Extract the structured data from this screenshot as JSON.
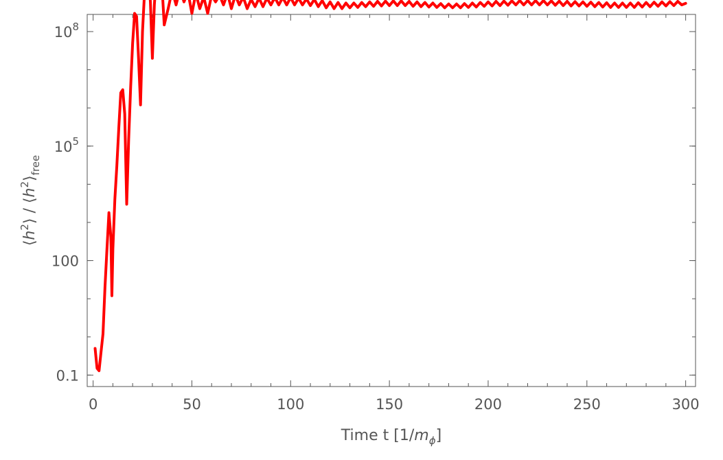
{
  "chart_data": {
    "type": "line",
    "title": "",
    "xlabel": {
      "text": "Time t [1/",
      "italic": "m",
      "sub": "ϕ",
      "close": "]"
    },
    "ylabel": {
      "part1": "⟨",
      "h": "h",
      "sup": "2",
      "part2": "⟩ / ⟨",
      "part3": "⟩",
      "sub": "free"
    },
    "xlim": [
      -3,
      305
    ],
    "ylim_log10": [
      -1.3,
      8.45
    ],
    "yscale": "log",
    "xticks": [
      {
        "value": 0,
        "label": "0"
      },
      {
        "value": 50,
        "label": "50"
      },
      {
        "value": 100,
        "label": "100"
      },
      {
        "value": 150,
        "label": "150"
      },
      {
        "value": 200,
        "label": "200"
      },
      {
        "value": 250,
        "label": "250"
      },
      {
        "value": 300,
        "label": "300"
      }
    ],
    "yticks": [
      {
        "value": 0.1,
        "label": "0.1"
      },
      {
        "value": 100,
        "label": "100"
      },
      {
        "value": 100000,
        "label_base": "10",
        "label_exp": "5"
      },
      {
        "value": 100000000,
        "label_base": "10",
        "label_exp": "8"
      }
    ],
    "grid": false,
    "color": "#ff0000",
    "series": [
      {
        "values": [
          [
            1.0,
            0.5
          ],
          [
            2.0,
            0.15
          ],
          [
            3.0,
            0.13
          ],
          [
            4.0,
            0.4
          ],
          [
            5.0,
            1.2
          ],
          [
            6.0,
            20
          ],
          [
            7.0,
            200
          ],
          [
            8.0,
            1800
          ],
          [
            9.0,
            400
          ],
          [
            9.5,
            12
          ],
          [
            10.0,
            200
          ],
          [
            11.0,
            4000
          ],
          [
            12.0,
            30000
          ],
          [
            13.0,
            300000
          ],
          [
            14.0,
            2500000
          ],
          [
            15.0,
            3000000
          ],
          [
            16.0,
            700000
          ],
          [
            17.0,
            3000
          ],
          [
            18.0,
            150000
          ],
          [
            19.0,
            3500000
          ],
          [
            20.0,
            50000000
          ],
          [
            21.0,
            300000000
          ],
          [
            22.0,
            250000000
          ],
          [
            23.0,
            20000000
          ],
          [
            24.0,
            1200000
          ],
          [
            25.0,
            100000000
          ],
          [
            26.0,
            1000000000
          ],
          [
            27.0,
            3500000000
          ],
          [
            28.0,
            3000000000
          ],
          [
            29.0,
            600000000
          ],
          [
            30.0,
            20000000
          ],
          [
            31.0,
            500000000
          ],
          [
            32.0,
            3000000000
          ],
          [
            33.0,
            5000000000
          ],
          [
            34.0,
            4000000000
          ],
          [
            35.0,
            1200000000
          ],
          [
            36.0,
            150000000
          ],
          [
            38.0,
            400000000
          ],
          [
            40.0,
            1200000000
          ],
          [
            42.0,
            500000000
          ],
          [
            44.0,
            1300000000
          ],
          [
            46.0,
            600000000
          ],
          [
            48.0,
            1100000000
          ],
          [
            50.0,
            300000000
          ],
          [
            52.0,
            1000000000
          ],
          [
            54.0,
            400000000
          ],
          [
            56.0,
            800000000
          ],
          [
            58.0,
            300000000
          ],
          [
            60.0,
            900000000
          ],
          [
            62.0,
            600000000
          ],
          [
            64.0,
            900000000
          ],
          [
            66.0,
            500000000
          ],
          [
            68.0,
            1000000000
          ],
          [
            70.0,
            400000000
          ],
          [
            72.0,
            900000000
          ],
          [
            74.0,
            500000000
          ],
          [
            76.0,
            800000000
          ],
          [
            78.0,
            400000000
          ],
          [
            80.0,
            700000000
          ],
          [
            82.0,
            450000000
          ],
          [
            84.0,
            750000000
          ],
          [
            86.0,
            450000000
          ],
          [
            88.0,
            750000000
          ],
          [
            90.0,
            500000000
          ],
          [
            92.0,
            780000000
          ],
          [
            94.0,
            500000000
          ],
          [
            96.0,
            780000000
          ],
          [
            98.0,
            500000000
          ],
          [
            100.0,
            780000000
          ],
          [
            102.0,
            500000000
          ],
          [
            104.0,
            750000000
          ],
          [
            106.0,
            500000000
          ],
          [
            108.0,
            720000000
          ],
          [
            110.0,
            480000000
          ],
          [
            112.0,
            700000000
          ],
          [
            114.0,
            450000000
          ],
          [
            116.0,
            650000000
          ],
          [
            118.0,
            420000000
          ],
          [
            120.0,
            600000000
          ],
          [
            122.0,
            400000000
          ],
          [
            124.0,
            580000000
          ],
          [
            126.0,
            400000000
          ],
          [
            128.0,
            560000000
          ],
          [
            130.0,
            420000000
          ],
          [
            132.0,
            560000000
          ],
          [
            134.0,
            430000000
          ],
          [
            136.0,
            580000000
          ],
          [
            138.0,
            450000000
          ],
          [
            140.0,
            600000000
          ],
          [
            142.0,
            460000000
          ],
          [
            144.0,
            620000000
          ],
          [
            146.0,
            470000000
          ],
          [
            148.0,
            630000000
          ],
          [
            150.0,
            480000000
          ],
          [
            152.0,
            640000000
          ],
          [
            154.0,
            480000000
          ],
          [
            156.0,
            640000000
          ],
          [
            158.0,
            480000000
          ],
          [
            160.0,
            620000000
          ],
          [
            162.0,
            460000000
          ],
          [
            164.0,
            600000000
          ],
          [
            166.0,
            450000000
          ],
          [
            168.0,
            580000000
          ],
          [
            170.0,
            440000000
          ],
          [
            172.0,
            560000000
          ],
          [
            174.0,
            430000000
          ],
          [
            176.0,
            540000000
          ],
          [
            178.0,
            420000000
          ],
          [
            180.0,
            530000000
          ],
          [
            182.0,
            420000000
          ],
          [
            184.0,
            530000000
          ],
          [
            186.0,
            420000000
          ],
          [
            188.0,
            540000000
          ],
          [
            190.0,
            430000000
          ],
          [
            192.0,
            560000000
          ],
          [
            194.0,
            440000000
          ],
          [
            196.0,
            580000000
          ],
          [
            198.0,
            460000000
          ],
          [
            200.0,
            600000000
          ],
          [
            202.0,
            470000000
          ],
          [
            204.0,
            620000000
          ],
          [
            206.0,
            480000000
          ],
          [
            208.0,
            630000000
          ],
          [
            210.0,
            490000000
          ],
          [
            212.0,
            640000000
          ],
          [
            214.0,
            500000000
          ],
          [
            216.0,
            650000000
          ],
          [
            218.0,
            500000000
          ],
          [
            220.0,
            650000000
          ],
          [
            222.0,
            500000000
          ],
          [
            224.0,
            650000000
          ],
          [
            226.0,
            500000000
          ],
          [
            228.0,
            650000000
          ],
          [
            230.0,
            500000000
          ],
          [
            232.0,
            640000000
          ],
          [
            234.0,
            490000000
          ],
          [
            236.0,
            630000000
          ],
          [
            238.0,
            480000000
          ],
          [
            240.0,
            620000000
          ],
          [
            242.0,
            470000000
          ],
          [
            244.0,
            610000000
          ],
          [
            246.0,
            470000000
          ],
          [
            248.0,
            600000000
          ],
          [
            250.0,
            460000000
          ],
          [
            252.0,
            590000000
          ],
          [
            254.0,
            450000000
          ],
          [
            256.0,
            580000000
          ],
          [
            258.0,
            440000000
          ],
          [
            260.0,
            570000000
          ],
          [
            262.0,
            430000000
          ],
          [
            264.0,
            560000000
          ],
          [
            266.0,
            430000000
          ],
          [
            268.0,
            560000000
          ],
          [
            270.0,
            430000000
          ],
          [
            272.0,
            560000000
          ],
          [
            274.0,
            430000000
          ],
          [
            276.0,
            570000000
          ],
          [
            278.0,
            440000000
          ],
          [
            280.0,
            580000000
          ],
          [
            282.0,
            450000000
          ],
          [
            284.0,
            590000000
          ],
          [
            286.0,
            460000000
          ],
          [
            288.0,
            600000000
          ],
          [
            290.0,
            470000000
          ],
          [
            292.0,
            610000000
          ],
          [
            294.0,
            480000000
          ],
          [
            296.0,
            620000000
          ],
          [
            298.0,
            500000000
          ],
          [
            300.0,
            550000000
          ]
        ]
      }
    ]
  }
}
